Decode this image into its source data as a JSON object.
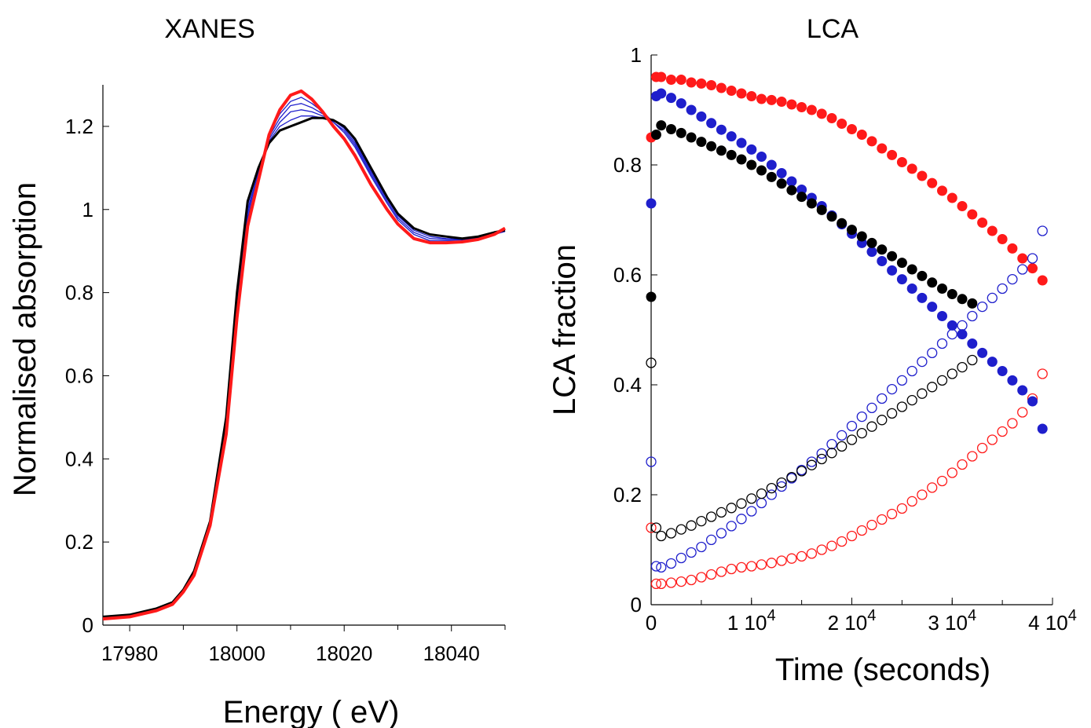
{
  "chart_data": [
    {
      "type": "line",
      "title": "XANES",
      "xlabel": "Energy ( eV)",
      "ylabel": "Normalised absorption",
      "xlim": [
        17975,
        18050
      ],
      "ylim": [
        0,
        1.3
      ],
      "xticks": [
        {
          "value": 17980,
          "label": "17980"
        },
        {
          "value": 18000,
          "label": "18000"
        },
        {
          "value": 18020,
          "label": "18020"
        },
        {
          "value": 18040,
          "label": "18040"
        }
      ],
      "yticks": [
        {
          "value": 0,
          "label": "0"
        },
        {
          "value": 0.2,
          "label": "0.2"
        },
        {
          "value": 0.4,
          "label": "0.4"
        },
        {
          "value": 0.6,
          "label": "0.6"
        },
        {
          "value": 0.8,
          "label": "0.8"
        },
        {
          "value": 1.0,
          "label": "1"
        },
        {
          "value": 1.2,
          "label": "1.2"
        }
      ],
      "grid": false,
      "legend": "none",
      "series_colors": {
        "initial": "#000000",
        "intermediate": "#1f1fcc",
        "final": "#ff1a1a"
      },
      "series": [
        {
          "role": "initial",
          "x": [
            17975,
            17980,
            17985,
            17988,
            17990,
            17992,
            17995,
            17998,
            18000,
            18002,
            18004,
            18006,
            18008,
            18010,
            18012,
            18014,
            18016,
            18018,
            18020,
            18022,
            18025,
            18028,
            18030,
            18033,
            18036,
            18039,
            18042,
            18045,
            18048,
            18050
          ],
          "y": [
            0.02,
            0.025,
            0.04,
            0.055,
            0.085,
            0.13,
            0.25,
            0.5,
            0.8,
            1.02,
            1.1,
            1.16,
            1.19,
            1.2,
            1.21,
            1.22,
            1.22,
            1.215,
            1.2,
            1.17,
            1.1,
            1.03,
            0.99,
            0.955,
            0.94,
            0.935,
            0.93,
            0.935,
            0.945,
            0.95
          ]
        },
        {
          "role": "intermediate",
          "x": [
            17975,
            17980,
            17985,
            17988,
            17990,
            17992,
            17995,
            17998,
            18000,
            18002,
            18004,
            18006,
            18008,
            18010,
            18012,
            18014,
            18016,
            18018,
            18020,
            18022,
            18025,
            18028,
            18030,
            18033,
            18036,
            18039,
            18042,
            18045,
            18048,
            18050
          ],
          "y": [
            0.02,
            0.025,
            0.04,
            0.055,
            0.085,
            0.13,
            0.25,
            0.49,
            0.79,
            1.01,
            1.1,
            1.165,
            1.2,
            1.215,
            1.225,
            1.225,
            1.22,
            1.215,
            1.2,
            1.165,
            1.095,
            1.03,
            0.99,
            0.955,
            0.94,
            0.935,
            0.93,
            0.935,
            0.945,
            0.95
          ]
        },
        {
          "role": "intermediate",
          "x": [
            17975,
            17980,
            17985,
            17988,
            17990,
            17992,
            17995,
            17998,
            18000,
            18002,
            18004,
            18006,
            18008,
            18010,
            18012,
            18014,
            18016,
            18018,
            18020,
            18022,
            18025,
            18028,
            18030,
            18033,
            18036,
            18039,
            18042,
            18045,
            18048,
            18050
          ],
          "y": [
            0.02,
            0.025,
            0.04,
            0.055,
            0.085,
            0.13,
            0.25,
            0.49,
            0.78,
            1.0,
            1.09,
            1.17,
            1.21,
            1.235,
            1.24,
            1.235,
            1.225,
            1.215,
            1.195,
            1.16,
            1.09,
            1.025,
            0.985,
            0.95,
            0.935,
            0.93,
            0.928,
            0.933,
            0.943,
            0.948
          ]
        },
        {
          "role": "intermediate",
          "x": [
            17975,
            17980,
            17985,
            17988,
            17990,
            17992,
            17995,
            17998,
            18000,
            18002,
            18004,
            18006,
            18008,
            18010,
            18012,
            18014,
            18016,
            18018,
            18020,
            18022,
            18025,
            18028,
            18030,
            18033,
            18036,
            18039,
            18042,
            18045,
            18048,
            18050
          ],
          "y": [
            0.02,
            0.025,
            0.04,
            0.055,
            0.085,
            0.13,
            0.25,
            0.48,
            0.77,
            0.99,
            1.09,
            1.175,
            1.22,
            1.25,
            1.255,
            1.245,
            1.23,
            1.21,
            1.19,
            1.155,
            1.085,
            1.02,
            0.98,
            0.945,
            0.93,
            0.928,
            0.926,
            0.932,
            0.942,
            0.948
          ]
        },
        {
          "role": "intermediate",
          "x": [
            17975,
            17980,
            17985,
            17988,
            17990,
            17992,
            17995,
            17998,
            18000,
            18002,
            18004,
            18006,
            18008,
            18010,
            18012,
            18014,
            18016,
            18018,
            18020,
            18022,
            18025,
            18028,
            18030,
            18033,
            18036,
            18039,
            18042,
            18045,
            18048,
            18050
          ],
          "y": [
            0.02,
            0.025,
            0.04,
            0.055,
            0.085,
            0.13,
            0.25,
            0.48,
            0.76,
            0.98,
            1.08,
            1.18,
            1.23,
            1.26,
            1.27,
            1.255,
            1.235,
            1.21,
            1.185,
            1.15,
            1.08,
            1.015,
            0.975,
            0.94,
            0.925,
            0.925,
            0.924,
            0.93,
            0.94,
            0.947
          ]
        },
        {
          "role": "final",
          "x": [
            17975,
            17980,
            17985,
            17988,
            17990,
            17992,
            17995,
            17998,
            18000,
            18002,
            18004,
            18006,
            18008,
            18010,
            18012,
            18014,
            18016,
            18018,
            18020,
            18022,
            18025,
            18028,
            18030,
            18033,
            18036,
            18039,
            18042,
            18045,
            18048,
            18050
          ],
          "y": [
            0.015,
            0.02,
            0.035,
            0.05,
            0.08,
            0.12,
            0.24,
            0.46,
            0.74,
            0.96,
            1.07,
            1.18,
            1.24,
            1.275,
            1.285,
            1.265,
            1.235,
            1.2,
            1.17,
            1.13,
            1.06,
            1.0,
            0.965,
            0.93,
            0.92,
            0.92,
            0.922,
            0.928,
            0.94,
            0.955
          ]
        }
      ]
    },
    {
      "type": "scatter",
      "title": "LCA",
      "xlabel": "Time (seconds)",
      "ylabel": "LCA fraction",
      "xlim": [
        0,
        40000
      ],
      "ylim": [
        0,
        1
      ],
      "xticks": [
        {
          "value": 0,
          "base": "0",
          "exp": ""
        },
        {
          "value": 10000,
          "base": "1 10",
          "exp": "4"
        },
        {
          "value": 20000,
          "base": "2 10",
          "exp": "4"
        },
        {
          "value": 30000,
          "base": "3 10",
          "exp": "4"
        },
        {
          "value": 40000,
          "base": "4 10",
          "exp": "4"
        }
      ],
      "yticks": [
        {
          "value": 0,
          "label": "0"
        },
        {
          "value": 0.2,
          "label": "0.2"
        },
        {
          "value": 0.4,
          "label": "0.4"
        },
        {
          "value": 0.6,
          "label": "0.6"
        },
        {
          "value": 0.8,
          "label": "0.8"
        },
        {
          "value": 1,
          "label": "1"
        }
      ],
      "grid": false,
      "legend": "none",
      "series": [
        {
          "color": "#ff1a1a",
          "filled": true,
          "x": [
            0,
            500,
            1000,
            2000,
            3000,
            4000,
            5000,
            6000,
            7000,
            8000,
            9000,
            10000,
            11000,
            12000,
            13000,
            14000,
            15000,
            16000,
            17000,
            18000,
            19000,
            20000,
            21000,
            22000,
            23000,
            24000,
            25000,
            26000,
            27000,
            28000,
            29000,
            30000,
            31000,
            32000,
            33000,
            34000,
            35000,
            36000,
            37000,
            38000,
            39000
          ],
          "y": [
            0.85,
            0.96,
            0.96,
            0.955,
            0.955,
            0.95,
            0.948,
            0.945,
            0.94,
            0.935,
            0.93,
            0.925,
            0.92,
            0.918,
            0.915,
            0.91,
            0.905,
            0.9,
            0.893,
            0.885,
            0.875,
            0.865,
            0.855,
            0.843,
            0.83,
            0.818,
            0.805,
            0.793,
            0.78,
            0.767,
            0.753,
            0.74,
            0.725,
            0.71,
            0.695,
            0.68,
            0.665,
            0.648,
            0.63,
            0.612,
            0.59
          ]
        },
        {
          "color": "#ff1a1a",
          "filled": false,
          "x": [
            0,
            500,
            1000,
            2000,
            3000,
            4000,
            5000,
            6000,
            7000,
            8000,
            9000,
            10000,
            11000,
            12000,
            13000,
            14000,
            15000,
            16000,
            17000,
            18000,
            19000,
            20000,
            21000,
            22000,
            23000,
            24000,
            25000,
            26000,
            27000,
            28000,
            29000,
            30000,
            31000,
            32000,
            33000,
            34000,
            35000,
            36000,
            37000,
            38000,
            39000
          ],
          "y": [
            0.14,
            0.038,
            0.038,
            0.04,
            0.042,
            0.045,
            0.05,
            0.055,
            0.06,
            0.065,
            0.068,
            0.07,
            0.073,
            0.076,
            0.08,
            0.084,
            0.088,
            0.093,
            0.1,
            0.107,
            0.115,
            0.125,
            0.135,
            0.145,
            0.155,
            0.165,
            0.175,
            0.188,
            0.2,
            0.213,
            0.225,
            0.24,
            0.255,
            0.27,
            0.285,
            0.3,
            0.315,
            0.33,
            0.35,
            0.375,
            0.42
          ]
        },
        {
          "color": "#1f1fcc",
          "filled": true,
          "x": [
            0,
            500,
            1000,
            2000,
            3000,
            4000,
            5000,
            6000,
            7000,
            8000,
            9000,
            10000,
            11000,
            12000,
            13000,
            14000,
            15000,
            16000,
            17000,
            18000,
            19000,
            20000,
            21000,
            22000,
            23000,
            24000,
            25000,
            26000,
            27000,
            28000,
            29000,
            30000,
            31000,
            32000,
            33000,
            34000,
            35000,
            36000,
            37000,
            38000,
            39000
          ],
          "y": [
            0.73,
            0.925,
            0.93,
            0.922,
            0.912,
            0.9,
            0.888,
            0.876,
            0.864,
            0.852,
            0.84,
            0.828,
            0.815,
            0.8,
            0.785,
            0.77,
            0.755,
            0.74,
            0.725,
            0.708,
            0.692,
            0.675,
            0.658,
            0.642,
            0.625,
            0.608,
            0.592,
            0.575,
            0.558,
            0.542,
            0.525,
            0.508,
            0.492,
            0.475,
            0.458,
            0.442,
            0.425,
            0.408,
            0.39,
            0.37,
            0.32
          ]
        },
        {
          "color": "#1f1fcc",
          "filled": false,
          "x": [
            0,
            500,
            1000,
            2000,
            3000,
            4000,
            5000,
            6000,
            7000,
            8000,
            9000,
            10000,
            11000,
            12000,
            13000,
            14000,
            15000,
            16000,
            17000,
            18000,
            19000,
            20000,
            21000,
            22000,
            23000,
            24000,
            25000,
            26000,
            27000,
            28000,
            29000,
            30000,
            31000,
            32000,
            33000,
            34000,
            35000,
            36000,
            37000,
            38000,
            39000
          ],
          "y": [
            0.26,
            0.07,
            0.068,
            0.075,
            0.085,
            0.095,
            0.105,
            0.118,
            0.13,
            0.143,
            0.156,
            0.17,
            0.185,
            0.2,
            0.215,
            0.23,
            0.245,
            0.26,
            0.275,
            0.292,
            0.308,
            0.325,
            0.342,
            0.358,
            0.375,
            0.392,
            0.408,
            0.425,
            0.442,
            0.458,
            0.475,
            0.492,
            0.508,
            0.525,
            0.542,
            0.558,
            0.575,
            0.592,
            0.61,
            0.63,
            0.68
          ]
        },
        {
          "color": "#000000",
          "filled": true,
          "x": [
            0,
            500,
            1000,
            2000,
            3000,
            4000,
            5000,
            6000,
            7000,
            8000,
            9000,
            10000,
            11000,
            12000,
            13000,
            14000,
            15000,
            16000,
            17000,
            18000,
            19000,
            20000,
            21000,
            22000,
            23000,
            24000,
            25000,
            26000,
            27000,
            28000,
            29000,
            30000,
            31000,
            32000
          ],
          "y": [
            0.56,
            0.855,
            0.872,
            0.865,
            0.858,
            0.85,
            0.842,
            0.834,
            0.826,
            0.818,
            0.81,
            0.8,
            0.79,
            0.778,
            0.766,
            0.754,
            0.742,
            0.73,
            0.718,
            0.706,
            0.694,
            0.682,
            0.67,
            0.658,
            0.646,
            0.634,
            0.622,
            0.61,
            0.598,
            0.586,
            0.575,
            0.565,
            0.556,
            0.548
          ]
        },
        {
          "color": "#000000",
          "filled": false,
          "x": [
            0,
            500,
            1000,
            2000,
            3000,
            4000,
            5000,
            6000,
            7000,
            8000,
            9000,
            10000,
            11000,
            12000,
            13000,
            14000,
            15000,
            16000,
            17000,
            18000,
            19000,
            20000,
            21000,
            22000,
            23000,
            24000,
            25000,
            26000,
            27000,
            28000,
            29000,
            30000,
            31000,
            32000
          ],
          "y": [
            0.44,
            0.14,
            0.125,
            0.13,
            0.137,
            0.144,
            0.152,
            0.16,
            0.168,
            0.176,
            0.184,
            0.193,
            0.202,
            0.212,
            0.222,
            0.232,
            0.243,
            0.254,
            0.265,
            0.276,
            0.288,
            0.3,
            0.312,
            0.324,
            0.336,
            0.348,
            0.36,
            0.372,
            0.384,
            0.396,
            0.408,
            0.42,
            0.432,
            0.445
          ]
        }
      ]
    }
  ]
}
